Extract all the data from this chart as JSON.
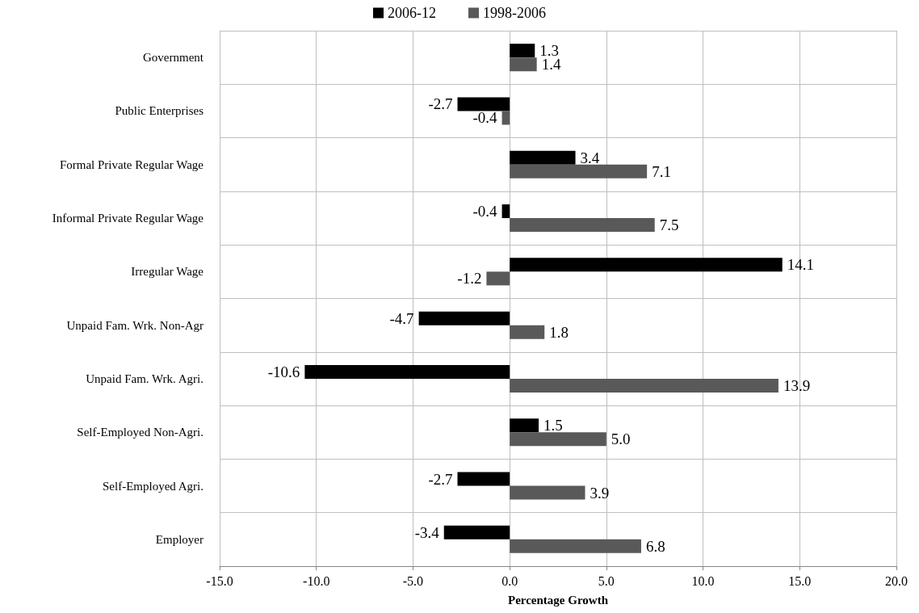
{
  "chart_data": {
    "type": "bar",
    "orientation": "horizontal",
    "xlabel": "Percentage Growth",
    "categories": [
      "Government",
      "Public Enterprises",
      "Formal Private Regular Wage",
      "Informal Private Regular Wage",
      "Irregular Wage",
      "Unpaid Fam. Wrk. Non-Agr",
      "Unpaid Fam. Wrk. Agri.",
      "Self-Employed Non-Agri.",
      "Self-Employed Agri.",
      "Employer"
    ],
    "series": [
      {
        "name": "2006-12",
        "color": "#000000",
        "values": [
          1.3,
          -2.7,
          3.4,
          -0.4,
          14.1,
          -4.7,
          -10.6,
          1.5,
          -2.7,
          -3.4
        ],
        "value_labels": [
          "1.3",
          "-2.7",
          "3.4",
          "-0.4",
          "14.1",
          "-4.7",
          "-10.6",
          "1.5",
          "-2.7",
          "-3.4"
        ]
      },
      {
        "name": "1998-2006",
        "color": "#595959",
        "values": [
          1.4,
          -0.4,
          7.1,
          7.5,
          -1.2,
          1.8,
          13.9,
          5.0,
          3.9,
          6.8
        ],
        "value_labels": [
          "1.4",
          "-0.4",
          "7.1",
          "7.5",
          "-1.2",
          "1.8",
          "13.9",
          "5.0",
          "3.9",
          "6.8"
        ]
      }
    ],
    "xlim": [
      -15,
      20
    ],
    "xticks": [
      {
        "value": -15,
        "label": "-15.0"
      },
      {
        "value": -10,
        "label": "-10.0"
      },
      {
        "value": -5,
        "label": "-5.0"
      },
      {
        "value": 0,
        "label": "0.0"
      },
      {
        "value": 5,
        "label": "5.0"
      },
      {
        "value": 10,
        "label": "10.0"
      },
      {
        "value": 15,
        "label": "15.0"
      },
      {
        "value": 20,
        "label": "20.0"
      }
    ],
    "grid": true,
    "legend": "top"
  }
}
